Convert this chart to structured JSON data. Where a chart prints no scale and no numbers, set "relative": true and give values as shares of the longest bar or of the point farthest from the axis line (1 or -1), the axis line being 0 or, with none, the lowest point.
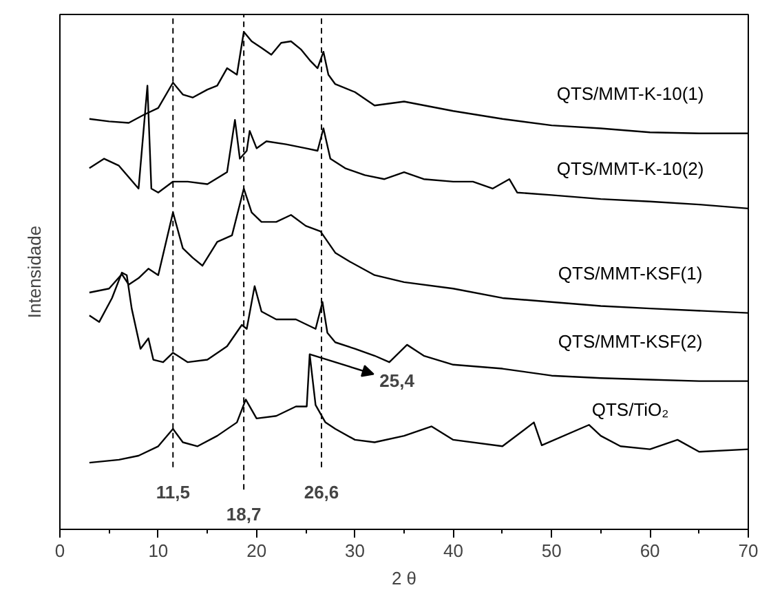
{
  "chart_data": {
    "type": "line",
    "relative": true,
    "xlabel": "2 θ",
    "ylabel": "Intensidade",
    "xlim": [
      0,
      70
    ],
    "xticks": [
      0,
      10,
      20,
      30,
      40,
      50,
      60,
      70
    ],
    "tick_labels": "x",
    "grid": false,
    "legend": false,
    "marker": "none",
    "line_style": "solid",
    "series": [
      {
        "name": "QTS/MMT-K-10(1)",
        "color": "#000000",
        "x": [
          3,
          5,
          7,
          8.5,
          10,
          11.5,
          12.5,
          13.5,
          15,
          16,
          17,
          18,
          18.7,
          19.5,
          20.5,
          21.5,
          22.5,
          23.5,
          24.5,
          25.5,
          26.2,
          26.8,
          27.3,
          28,
          30,
          32,
          35,
          40,
          45,
          50,
          55,
          60,
          65,
          70
        ],
        "values": [
          0.825,
          0.82,
          0.817,
          0.833,
          0.847,
          0.898,
          0.874,
          0.868,
          0.884,
          0.892,
          0.927,
          0.914,
          1.0,
          0.981,
          0.968,
          0.954,
          0.978,
          0.981,
          0.965,
          0.941,
          0.927,
          0.96,
          0.914,
          0.895,
          0.879,
          0.852,
          0.86,
          0.841,
          0.825,
          0.812,
          0.806,
          0.798,
          0.796,
          0.796
        ]
      },
      {
        "name": "QTS/MMT-K-10(2)",
        "color": "#000000",
        "x": [
          3,
          4.5,
          6,
          8,
          8.9,
          9.3,
          10,
          11.5,
          13,
          15,
          17,
          17.8,
          18.3,
          19,
          19.3,
          20,
          21,
          23,
          25,
          26.2,
          26.8,
          27.5,
          29,
          31,
          33,
          35,
          37,
          40,
          42,
          44,
          45.7,
          46.5,
          50,
          55,
          60,
          65,
          70
        ],
        "values": [
          0.726,
          0.745,
          0.731,
          0.685,
          0.892,
          0.685,
          0.677,
          0.699,
          0.699,
          0.694,
          0.718,
          0.823,
          0.745,
          0.761,
          0.801,
          0.766,
          0.78,
          0.774,
          0.766,
          0.761,
          0.806,
          0.745,
          0.726,
          0.712,
          0.704,
          0.718,
          0.704,
          0.699,
          0.699,
          0.685,
          0.704,
          0.677,
          0.672,
          0.664,
          0.659,
          0.653,
          0.645
        ]
      },
      {
        "name": "QTS/MMT-KSF(1)",
        "color": "#000000",
        "x": [
          3,
          5,
          6.3,
          7,
          8,
          9,
          10,
          11.5,
          12.5,
          13.5,
          14.5,
          16,
          17.5,
          18.7,
          19.5,
          20.5,
          22,
          23.5,
          25,
          26.5,
          28,
          29.5,
          32,
          35,
          40,
          45,
          50,
          55,
          60,
          70
        ],
        "values": [
          0.476,
          0.484,
          0.513,
          0.492,
          0.505,
          0.524,
          0.511,
          0.637,
          0.565,
          0.546,
          0.53,
          0.578,
          0.591,
          0.685,
          0.637,
          0.618,
          0.618,
          0.632,
          0.61,
          0.599,
          0.556,
          0.538,
          0.511,
          0.497,
          0.484,
          0.465,
          0.457,
          0.449,
          0.444,
          0.435
        ]
      },
      {
        "name": "QTS/MMT-KSF(2)",
        "color": "#000000",
        "x": [
          3,
          4,
          5.3,
          6.3,
          6.8,
          7.3,
          8.2,
          9,
          9.5,
          10.5,
          11.5,
          13,
          15,
          17,
          18.5,
          19,
          19.8,
          20.5,
          22,
          24,
          26,
          26.7,
          27.2,
          28,
          30,
          32,
          33.5,
          35.3,
          37,
          40,
          45,
          50,
          55,
          60,
          65,
          70
        ],
        "values": [
          0.43,
          0.417,
          0.465,
          0.516,
          0.511,
          0.444,
          0.363,
          0.384,
          0.341,
          0.336,
          0.355,
          0.336,
          0.341,
          0.368,
          0.411,
          0.403,
          0.489,
          0.438,
          0.422,
          0.422,
          0.403,
          0.457,
          0.395,
          0.376,
          0.363,
          0.349,
          0.336,
          0.371,
          0.349,
          0.331,
          0.323,
          0.309,
          0.304,
          0.301,
          0.298,
          0.298
        ]
      },
      {
        "name": "QTS/TiO₂",
        "color": "#000000",
        "x": [
          3,
          6,
          8,
          10,
          11.5,
          12.5,
          14,
          16,
          18,
          18.9,
          20,
          22,
          24,
          25.1,
          25.4,
          26,
          27,
          28,
          30,
          32,
          35,
          37.8,
          40,
          45,
          48.2,
          49,
          53.8,
          55,
          57,
          60,
          62.8,
          65,
          70
        ],
        "values": [
          0.134,
          0.14,
          0.148,
          0.167,
          0.202,
          0.175,
          0.167,
          0.188,
          0.215,
          0.261,
          0.223,
          0.228,
          0.247,
          0.247,
          0.352,
          0.25,
          0.215,
          0.202,
          0.18,
          0.175,
          0.188,
          0.207,
          0.18,
          0.167,
          0.215,
          0.169,
          0.21,
          0.188,
          0.167,
          0.161,
          0.18,
          0.156,
          0.161
        ]
      }
    ],
    "ref_lines": [
      {
        "axis": "x",
        "value": 11.5,
        "label": "11,5",
        "line_style": "dashed"
      },
      {
        "axis": "x",
        "value": 18.7,
        "label": "18,7",
        "line_style": "dashed"
      },
      {
        "axis": "x",
        "value": 26.6,
        "label": "26,6",
        "line_style": "dashed"
      }
    ],
    "annotations": [
      {
        "text": "25,4",
        "x": 25.4,
        "y": 0.352
      }
    ]
  }
}
